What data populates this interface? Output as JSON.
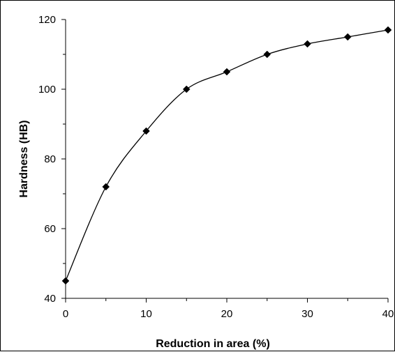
{
  "chart_data": {
    "type": "line",
    "title": "",
    "xlabel": "Reduction in area (%)",
    "ylabel": "Hardness (HB)",
    "xlim": [
      0,
      40
    ],
    "ylim": [
      40,
      120
    ],
    "x_ticks": [
      "0",
      "10",
      "20",
      "30",
      "40"
    ],
    "y_ticks": [
      "40",
      "60",
      "80",
      "100",
      "120"
    ],
    "grid": false,
    "legend": "none",
    "marker": "diamond",
    "line_style": "smooth",
    "color": "#000000",
    "series": [
      {
        "x": [
          0,
          5,
          10,
          15,
          20,
          25,
          30,
          35,
          40
        ],
        "y": [
          45,
          72,
          88,
          100,
          105,
          110,
          113,
          115,
          117
        ]
      }
    ]
  }
}
